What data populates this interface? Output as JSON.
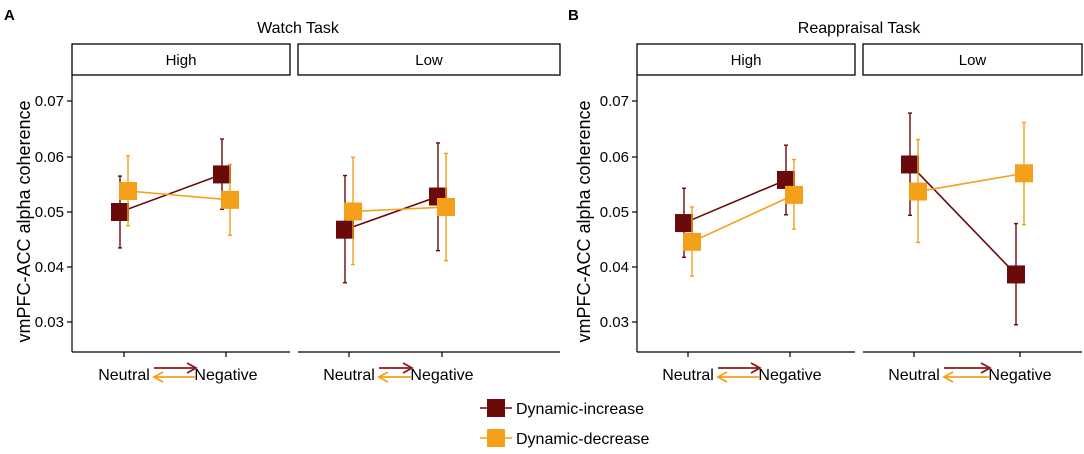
{
  "legend": {
    "items": [
      {
        "name": "Dynamic-increase",
        "color": "#6B0A0A"
      },
      {
        "name": "Dynamic-decrease",
        "color": "#F5A01A"
      }
    ]
  },
  "chart_data": [
    {
      "type": "line",
      "panel_letter": "A",
      "title": "Watch Task",
      "ylabel": "vmPFC-ACC alpha coherence",
      "ylim": [
        0.025,
        0.075
      ],
      "yticks": [
        "0.03",
        "0.04",
        "0.05",
        "0.06",
        "0.07"
      ],
      "xticks": [
        "Neutral",
        "Negative"
      ],
      "facets": [
        {
          "label": "High",
          "series": [
            {
              "name": "Dynamic-increase",
              "color": "#6B0A0A",
              "values": [
                0.05,
                0.0568
              ],
              "lower": [
                0.0435,
                0.0505
              ],
              "upper": [
                0.0565,
                0.0632
              ]
            },
            {
              "name": "Dynamic-decrease",
              "color": "#F5A01A",
              "values": [
                0.0538,
                0.0522
              ],
              "lower": [
                0.0475,
                0.0458
              ],
              "upper": [
                0.0602,
                0.0586
              ]
            }
          ]
        },
        {
          "label": "Low",
          "series": [
            {
              "name": "Dynamic-increase",
              "color": "#6B0A0A",
              "values": [
                0.0468,
                0.0528
              ],
              "lower": [
                0.0372,
                0.043
              ],
              "upper": [
                0.0566,
                0.0625
              ]
            },
            {
              "name": "Dynamic-decrease",
              "color": "#F5A01A",
              "values": [
                0.0501,
                0.0509
              ],
              "lower": [
                0.0405,
                0.0412
              ],
              "upper": [
                0.0599,
                0.0606
              ]
            }
          ]
        }
      ]
    },
    {
      "type": "line",
      "panel_letter": "B",
      "title": "Reappraisal Task",
      "ylabel": "vmPFC-ACC alpha coherence",
      "ylim": [
        0.025,
        0.075
      ],
      "yticks": [
        "0.03",
        "0.04",
        "0.05",
        "0.06",
        "0.07"
      ],
      "xticks": [
        "Neutral",
        "Negative"
      ],
      "facets": [
        {
          "label": "High",
          "series": [
            {
              "name": "Dynamic-increase",
              "color": "#6B0A0A",
              "values": [
                0.048,
                0.0558
              ],
              "lower": [
                0.0418,
                0.0495
              ],
              "upper": [
                0.0543,
                0.0621
              ]
            },
            {
              "name": "Dynamic-decrease",
              "color": "#F5A01A",
              "values": [
                0.0446,
                0.0531
              ],
              "lower": [
                0.0384,
                0.0469
              ],
              "upper": [
                0.0509,
                0.0595
              ]
            }
          ]
        },
        {
          "label": "Low",
          "series": [
            {
              "name": "Dynamic-increase",
              "color": "#6B0A0A",
              "values": [
                0.0586,
                0.0387
              ],
              "lower": [
                0.0494,
                0.0296
              ],
              "upper": [
                0.0679,
                0.0479
              ]
            },
            {
              "name": "Dynamic-decrease",
              "color": "#F5A01A",
              "values": [
                0.0537,
                0.057
              ],
              "lower": [
                0.0445,
                0.0477
              ],
              "upper": [
                0.0631,
                0.0662
              ]
            }
          ]
        }
      ]
    }
  ]
}
